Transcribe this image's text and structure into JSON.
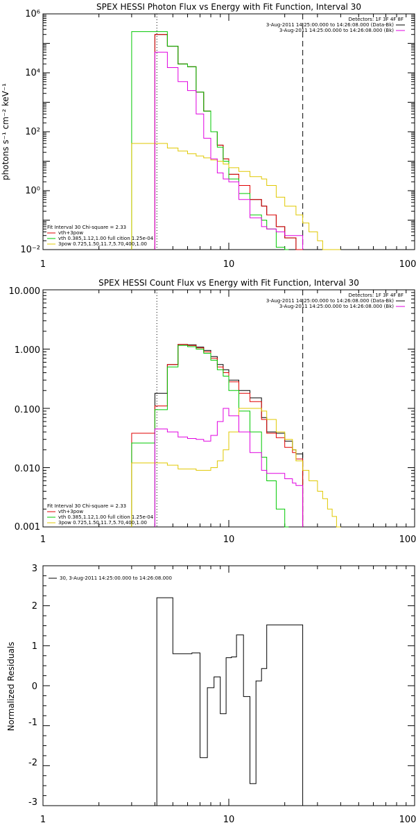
{
  "chart_data": [
    {
      "type": "line",
      "title": "SPEX HESSI Photon Flux vs Energy with Fit Function, Interval 30",
      "xlabel": "",
      "ylabel": "photons s⁻¹ cm⁻² keV⁻¹",
      "xscale": "log",
      "yscale": "log",
      "xlim": [
        1,
        100
      ],
      "ylim": [
        0.01,
        1000000
      ],
      "x_tick_labels": [
        "1",
        "10",
        "100"
      ],
      "y_tick_labels": [
        "10⁻²",
        "10⁰",
        "10²",
        "10⁴",
        "10⁶"
      ],
      "vlines": [
        {
          "x": 4.1,
          "style": "dotted"
        },
        {
          "x": 25,
          "style": "dashed"
        }
      ],
      "legend_top": {
        "header": "Detectors: 1F 3F 4F 8F",
        "entries": [
          {
            "label": "3-Aug-2011 14:25:00.000 to 14:26:08.000 (Data-Bk)",
            "color": "#000000"
          },
          {
            "label": "3-Aug-2011 14:25:00.000 to 14:26:08.000 (Bk)",
            "color": "#e000e0"
          }
        ]
      },
      "legend_bottom": {
        "header": "Fit Interval 30   Chi-square = 2.33",
        "entries": [
          {
            "label": "vth+3pow",
            "color": "#e00000"
          },
          {
            "label": "vth 0.385,1.12,1.00  full cition 1.25e-04",
            "color": "#00c800"
          },
          {
            "label": "3pow 0.725,1.50,11.7,5.70,400,1.00",
            "color": "#e0c800"
          }
        ]
      },
      "edges": [
        3.0,
        3.33,
        3.67,
        4.0,
        4.33,
        4.67,
        5.0,
        5.33,
        5.67,
        6.0,
        6.67,
        7.33,
        8.0,
        8.67,
        9.33,
        10.0,
        10.67,
        11.33,
        12.0,
        13.0,
        14.0,
        15.0,
        16.0,
        17.0,
        18.0,
        19.0,
        20.0,
        21.0,
        22.0,
        23.0,
        25.0,
        26.0,
        27.0,
        28.0,
        30.0,
        32.0,
        34.0,
        36.0,
        38.0,
        40.0
      ],
      "series": [
        {
          "name": "Data-Bk",
          "color": "#000000",
          "start": 4.1,
          "end": 25,
          "values": [
            null,
            null,
            null,
            200000,
            200000,
            80000,
            80000,
            20000,
            20000,
            16000,
            2200,
            500,
            100,
            35,
            12,
            3.6,
            3.6,
            1.5,
            1.5,
            0.5,
            0.5,
            0.3,
            0.15,
            0.15,
            0.06,
            0.06,
            0.025,
            0.025,
            0.025,
            0.01,
            null,
            null,
            null,
            null,
            null,
            null,
            null,
            null,
            null
          ]
        },
        {
          "name": "vth+3pow",
          "color": "#e00000",
          "start": 4.1,
          "end": 25,
          "values": [
            null,
            null,
            null,
            200000,
            200000,
            80000,
            80000,
            20000,
            20000,
            16000,
            2200,
            500,
            100,
            35,
            12,
            3.6,
            3.6,
            1.5,
            1.5,
            0.5,
            0.5,
            0.3,
            0.15,
            0.15,
            0.06,
            0.06,
            0.025,
            0.025,
            0.025,
            0.01,
            null,
            null,
            null,
            null,
            null,
            null,
            null,
            null,
            null
          ]
        },
        {
          "name": "vth",
          "color": "#00c800",
          "start": 3.0,
          "end": 21,
          "values": [
            250000,
            250000,
            250000,
            250000,
            250000,
            80000,
            80000,
            20000,
            20000,
            16000,
            2200,
            500,
            100,
            30,
            10,
            2.5,
            2.5,
            0.8,
            0.8,
            0.15,
            0.15,
            0.1,
            0.05,
            0.05,
            0.012,
            0.012,
            0.01,
            null,
            null,
            null,
            null,
            null,
            null,
            null,
            null,
            null,
            null,
            null,
            null
          ]
        },
        {
          "name": "3pow",
          "color": "#e0c800",
          "start": 3.0,
          "end": 36,
          "values": [
            40,
            40,
            40,
            40,
            40,
            28,
            28,
            22,
            22,
            18,
            15,
            13,
            11,
            10,
            8,
            6,
            6,
            4.5,
            4.5,
            3,
            3,
            2.5,
            1.5,
            1.5,
            0.6,
            0.6,
            0.3,
            0.3,
            0.3,
            0.15,
            0.08,
            0.08,
            0.04,
            0.04,
            0.02,
            0.01,
            0.01,
            0.01,
            0.01
          ]
        },
        {
          "name": "Bk",
          "color": "#e000e0",
          "start": 4.1,
          "end": 25,
          "values": [
            null,
            null,
            null,
            50000,
            50000,
            15000,
            15000,
            5000,
            5000,
            2500,
            400,
            60,
            12,
            4,
            2.5,
            2.0,
            2.0,
            0.5,
            0.5,
            0.12,
            0.12,
            0.06,
            0.05,
            0.05,
            0.04,
            0.04,
            0.03,
            0.03,
            0.03,
            0.03,
            null,
            null,
            null,
            null,
            null,
            null,
            null,
            null,
            null
          ]
        }
      ]
    },
    {
      "type": "line",
      "title": "SPEX HESSI Count Flux vs Energy with Fit Function, Interval 30",
      "xlabel": "",
      "ylabel": "",
      "xscale": "log",
      "yscale": "log",
      "xlim": [
        1,
        100
      ],
      "ylim": [
        0.001,
        10
      ],
      "x_tick_labels": [
        "1",
        "10",
        "100"
      ],
      "y_tick_labels": [
        "0.001",
        "0.010",
        "0.100",
        "1.000",
        "10.000"
      ],
      "vlines": [
        {
          "x": 4.1,
          "style": "dotted"
        },
        {
          "x": 25,
          "style": "dashed"
        }
      ],
      "legend_top": {
        "header": "Detectors: 1F 3F 4F 8F",
        "entries": [
          {
            "label": "3-Aug-2011 14:25:00.000 to 14:26:08.000 (Data-Bk)",
            "color": "#000000"
          },
          {
            "label": "3-Aug-2011 14:25:00.000 to 14:26:08.000 (Bk)",
            "color": "#e000e0"
          }
        ]
      },
      "legend_bottom": {
        "header": "Fit Interval 30   Chi-square = 2.33",
        "entries": [
          {
            "label": "vth+3pow",
            "color": "#e00000"
          },
          {
            "label": "vth 0.385,1.12,1.00  full cition 1.25e-04",
            "color": "#00c800"
          },
          {
            "label": "3pow 0.725,1.50,11.7,5.70,400,1.00",
            "color": "#e0c800"
          }
        ]
      },
      "edges": [
        3.0,
        3.33,
        3.67,
        4.0,
        4.33,
        4.67,
        5.0,
        5.33,
        5.67,
        6.0,
        6.67,
        7.33,
        8.0,
        8.67,
        9.33,
        10.0,
        10.67,
        11.33,
        12.0,
        13.0,
        14.0,
        15.0,
        16.0,
        17.0,
        18.0,
        19.0,
        20.0,
        21.0,
        22.0,
        23.0,
        25.0,
        26.0,
        27.0,
        28.0,
        30.0,
        32.0,
        34.0,
        36.0,
        38.0,
        40.0
      ],
      "series": [
        {
          "name": "Data-Bk",
          "color": "#000000",
          "start": 4.1,
          "end": 25,
          "values": [
            null,
            null,
            null,
            0.18,
            0.18,
            0.55,
            0.55,
            1.2,
            1.2,
            1.18,
            1.08,
            0.95,
            0.75,
            0.55,
            0.45,
            0.3,
            0.3,
            0.2,
            0.2,
            0.15,
            0.15,
            0.07,
            0.04,
            0.04,
            0.038,
            0.038,
            0.028,
            0.028,
            0.02,
            0.017,
            null,
            null,
            null,
            null,
            null,
            null,
            null,
            null,
            null
          ]
        },
        {
          "name": "vth+3pow",
          "color": "#e00000",
          "start": 3.0,
          "end": 25,
          "values": [
            0.038,
            0.038,
            0.038,
            0.11,
            0.11,
            0.55,
            0.55,
            1.2,
            1.2,
            1.15,
            1.05,
            0.9,
            0.7,
            0.5,
            0.4,
            0.28,
            0.28,
            0.18,
            0.18,
            0.13,
            0.13,
            0.065,
            0.038,
            0.038,
            0.032,
            0.032,
            0.022,
            0.022,
            0.018,
            0.014,
            null,
            null,
            null,
            null,
            null,
            null,
            null,
            null,
            null
          ]
        },
        {
          "name": "vth",
          "color": "#00c800",
          "start": 3.0,
          "end": 21,
          "values": [
            0.026,
            0.026,
            0.026,
            0.095,
            0.095,
            0.5,
            0.5,
            1.15,
            1.15,
            1.1,
            1.0,
            0.85,
            0.65,
            0.45,
            0.35,
            0.2,
            0.2,
            0.09,
            0.09,
            0.04,
            0.04,
            0.015,
            0.006,
            0.006,
            0.002,
            0.002,
            0.001,
            null,
            null,
            null,
            null,
            null,
            null,
            null,
            null,
            null,
            null,
            null,
            null
          ]
        },
        {
          "name": "3pow",
          "color": "#e0c800",
          "start": 3.0,
          "end": 40,
          "values": [
            0.012,
            0.012,
            0.012,
            0.012,
            0.012,
            0.011,
            0.011,
            0.0095,
            0.0095,
            0.0095,
            0.009,
            0.009,
            0.01,
            0.013,
            0.02,
            0.04,
            0.04,
            0.1,
            0.1,
            0.1,
            0.1,
            0.09,
            0.065,
            0.065,
            0.04,
            0.04,
            0.03,
            0.03,
            0.02,
            0.013,
            0.009,
            0.009,
            0.006,
            0.006,
            0.004,
            0.003,
            0.002,
            0.0015,
            0.001
          ]
        },
        {
          "name": "Bk",
          "color": "#e000e0",
          "start": 4.1,
          "end": 25,
          "values": [
            null,
            null,
            null,
            0.045,
            0.045,
            0.04,
            0.04,
            0.033,
            0.033,
            0.031,
            0.03,
            0.028,
            0.035,
            0.06,
            0.1,
            0.075,
            0.075,
            0.04,
            0.04,
            0.018,
            0.018,
            0.009,
            0.008,
            0.008,
            0.008,
            0.008,
            0.0065,
            0.0065,
            0.0055,
            0.005,
            null,
            null,
            null,
            null,
            null,
            null,
            null,
            null,
            null
          ]
        }
      ]
    },
    {
      "type": "line",
      "title": "",
      "xlabel": "",
      "ylabel": "Normalized Residuals",
      "xscale": "log",
      "yscale": "linear",
      "xlim": [
        1,
        100
      ],
      "ylim": [
        -3,
        3
      ],
      "x_tick_labels": [
        "1",
        "10",
        "100"
      ],
      "y_tick_labels": [
        "-3",
        "-2",
        "-1",
        "0",
        "1",
        "2",
        "3"
      ],
      "legend": {
        "entries": [
          {
            "label": "30,  3-Aug-2011 14:25:00.000 to 14:26:08.000",
            "color": "#000000"
          }
        ]
      },
      "edges": [
        4.1,
        5.0,
        5.67,
        6.33,
        7.0,
        7.67,
        8.33,
        9.0,
        9.67,
        10.33,
        11.0,
        12.0,
        13.0,
        14.0,
        15.0,
        16.0,
        17.0,
        18.0,
        20.0,
        22.0,
        25.0
      ],
      "series": [
        {
          "name": "30",
          "color": "#000000",
          "values": [
            2.2,
            0.8,
            0.8,
            0.82,
            -1.8,
            -0.05,
            0.22,
            -0.7,
            0.7,
            0.72,
            1.27,
            -0.27,
            -2.45,
            0.12,
            0.43,
            1.52,
            1.52,
            1.52,
            1.52,
            1.52
          ]
        }
      ]
    }
  ]
}
